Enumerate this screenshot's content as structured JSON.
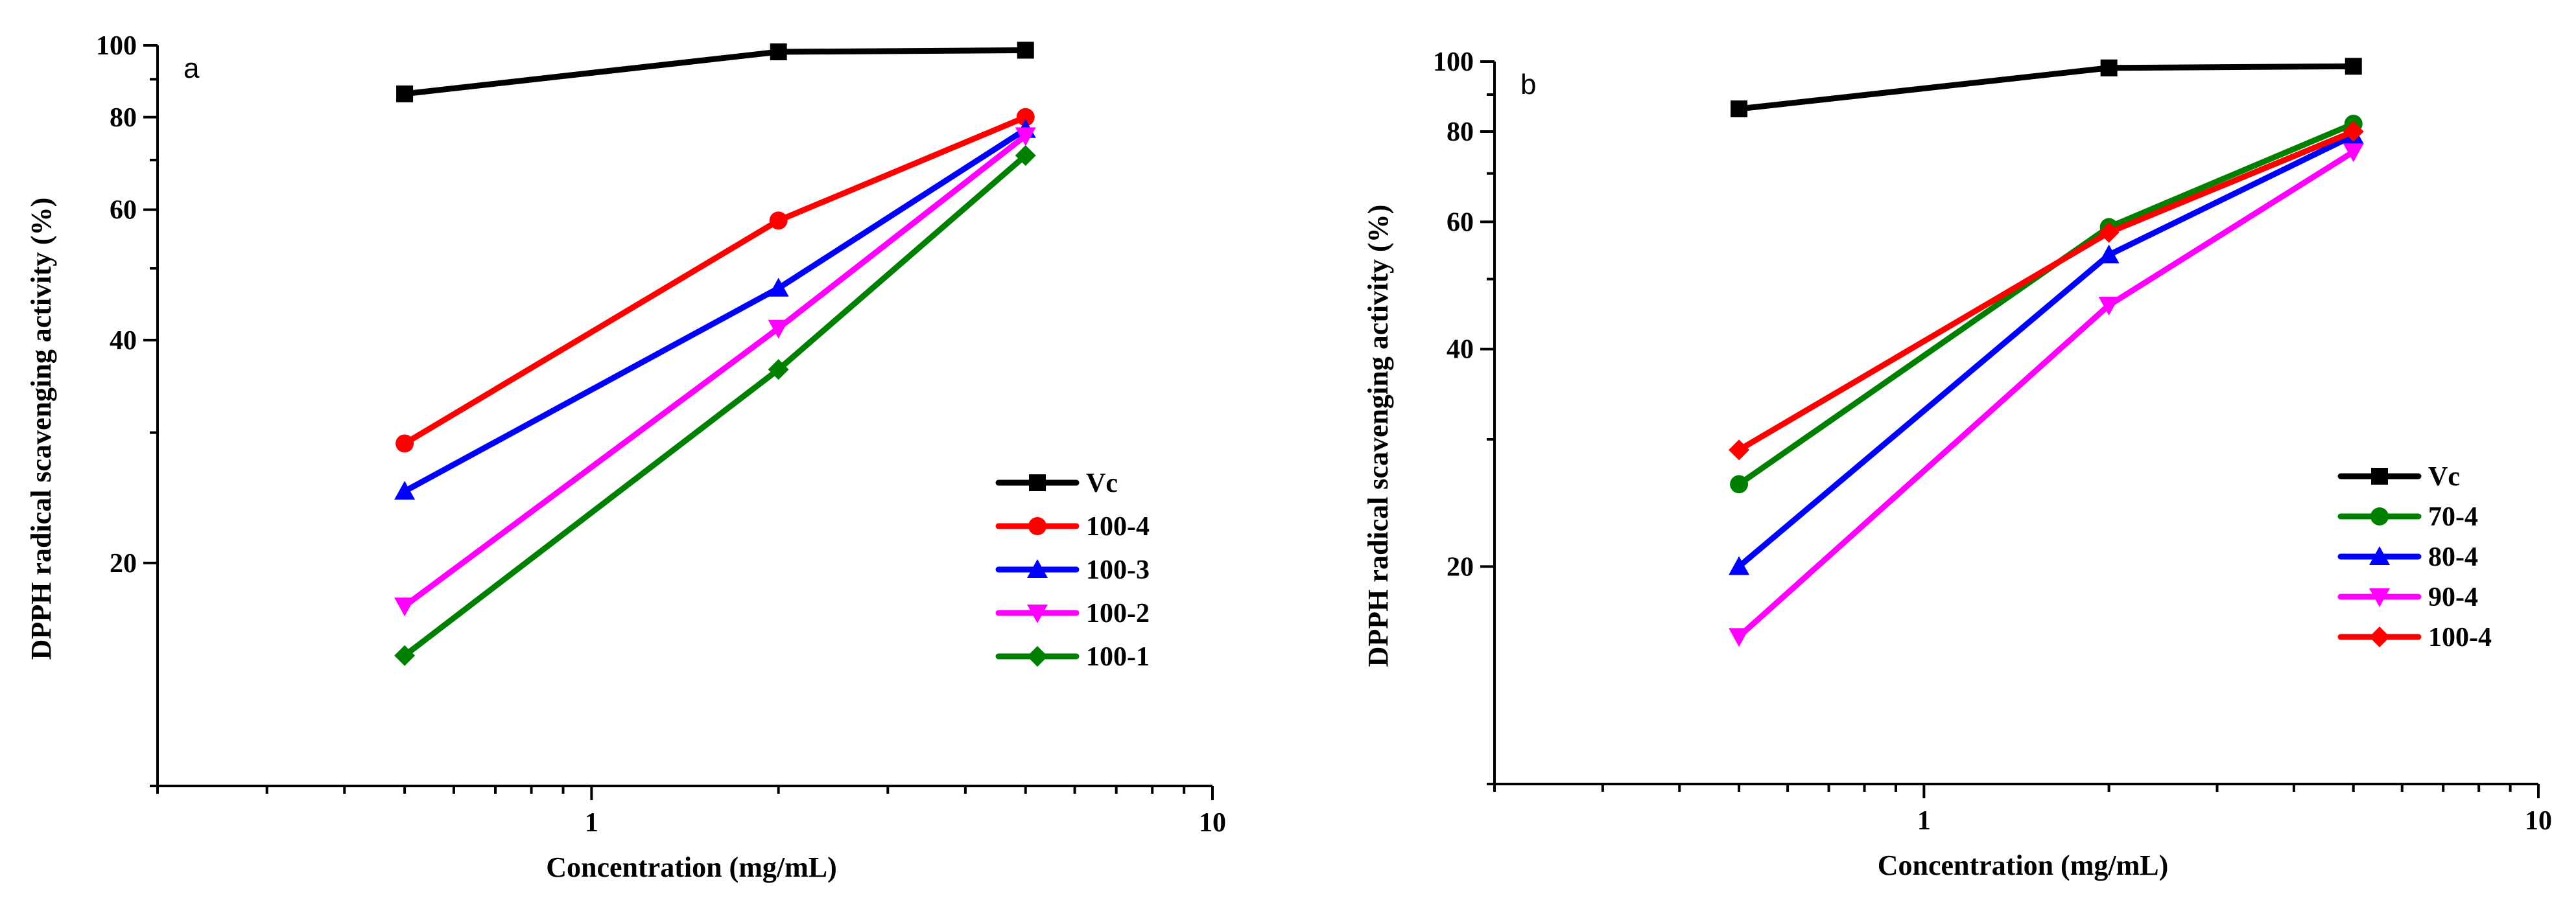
{
  "chart_data": [
    {
      "panel": "a",
      "type": "line",
      "xscale": "log",
      "yscale": "log",
      "xlabel": "Concentration (mg/mL)",
      "ylabel": "DPPH radical scavenging activity (%)",
      "xlim": [
        0.2,
        10
      ],
      "ylim": [
        10,
        100
      ],
      "x_ticks": [
        {
          "v": 1,
          "label": "1"
        },
        {
          "v": 10,
          "label": "10"
        }
      ],
      "x_minor_ticks": [
        0.2,
        0.3,
        0.4,
        0.5,
        0.6,
        0.7,
        0.8,
        0.9,
        2,
        3,
        4,
        5,
        6,
        7,
        8,
        9
      ],
      "y_ticks": [
        {
          "v": 20,
          "label": "20"
        },
        {
          "v": 40,
          "label": "40"
        },
        {
          "v": 60,
          "label": "60"
        },
        {
          "v": 80,
          "label": "80"
        },
        {
          "v": 100,
          "label": "100"
        }
      ],
      "y_minor_ticks": [
        10,
        30,
        50,
        70,
        90
      ],
      "legend_position": "right",
      "x": [
        0.5,
        2,
        5
      ],
      "series": [
        {
          "name": "Vc",
          "color": "#000000",
          "marker": "square",
          "values": [
            86,
            98,
            98.5
          ]
        },
        {
          "name": "100-4",
          "color": "#ff0000",
          "marker": "circle",
          "values": [
            29,
            58,
            80
          ]
        },
        {
          "name": "100-3",
          "color": "#0000ff",
          "marker": "triangle-up",
          "values": [
            25,
            47,
            77
          ]
        },
        {
          "name": "100-2",
          "color": "#ff00ff",
          "marker": "triangle-down",
          "values": [
            17.5,
            41.5,
            75.5
          ]
        },
        {
          "name": "100-1",
          "color": "#008000",
          "marker": "diamond",
          "values": [
            15,
            36.5,
            71
          ]
        }
      ]
    },
    {
      "panel": "b",
      "type": "line",
      "xscale": "log",
      "yscale": "log",
      "xlabel": "Concentration (mg/mL)",
      "ylabel": "DPPH radical scavenging activity (%)",
      "xlim": [
        0.2,
        10
      ],
      "ylim": [
        10,
        100
      ],
      "x_ticks": [
        {
          "v": 1,
          "label": "1"
        },
        {
          "v": 10,
          "label": "10"
        }
      ],
      "x_minor_ticks": [
        0.2,
        0.3,
        0.4,
        0.5,
        0.6,
        0.7,
        0.8,
        0.9,
        2,
        3,
        4,
        5,
        6,
        7,
        8,
        9
      ],
      "y_ticks": [
        {
          "v": 20,
          "label": "20"
        },
        {
          "v": 40,
          "label": "40"
        },
        {
          "v": 60,
          "label": "60"
        },
        {
          "v": 80,
          "label": "80"
        },
        {
          "v": 100,
          "label": "100"
        }
      ],
      "y_minor_ticks": [
        10,
        30,
        50,
        70,
        90
      ],
      "legend_position": "bottom-right",
      "x": [
        0.5,
        2,
        5
      ],
      "series": [
        {
          "name": "Vc",
          "color": "#000000",
          "marker": "square",
          "values": [
            86,
            98,
            98.5
          ]
        },
        {
          "name": "70-4",
          "color": "#008000",
          "marker": "circle",
          "values": [
            26,
            59,
            82
          ]
        },
        {
          "name": "80-4",
          "color": "#0000ff",
          "marker": "triangle-up",
          "values": [
            20,
            54,
            79
          ]
        },
        {
          "name": "90-4",
          "color": "#ff00ff",
          "marker": "triangle-down",
          "values": [
            16,
            46,
            75
          ]
        },
        {
          "name": "100-4",
          "color": "#ff0000",
          "marker": "diamond",
          "values": [
            29,
            58,
            80
          ]
        }
      ]
    }
  ]
}
